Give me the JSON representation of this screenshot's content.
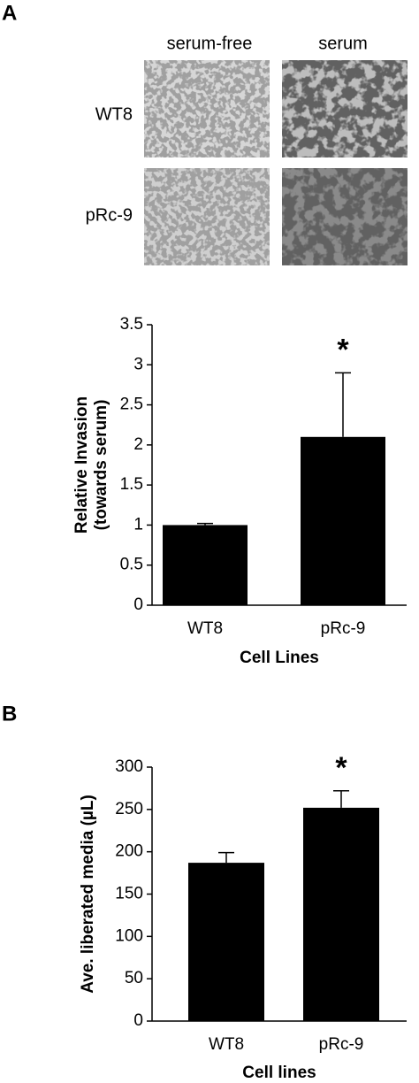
{
  "figure": {
    "panel_a": "A",
    "panel_b": "B",
    "columns": [
      "serum-free",
      "serum"
    ],
    "rows": [
      "WT8",
      "pRc-9"
    ]
  },
  "chart_data": [
    {
      "type": "bar",
      "categories": [
        "WT8",
        "pRc-9"
      ],
      "values": [
        1.0,
        2.1
      ],
      "errors": [
        0.02,
        0.8
      ],
      "color": "#000000",
      "ylabel": [
        "Relative Invasion",
        "(towards serum)"
      ],
      "xlabel": "Cell Lines",
      "ylim": [
        0,
        3.5
      ],
      "yticks": [
        0,
        0.5,
        1,
        1.5,
        2,
        2.5,
        3,
        3.5
      ],
      "grid": false,
      "annotations": [
        {
          "text": "*",
          "category": "pRc-9"
        }
      ]
    },
    {
      "type": "bar",
      "categories": [
        "WT8",
        "pRc-9"
      ],
      "values": [
        187,
        252
      ],
      "errors": [
        12,
        20
      ],
      "color": "#000000",
      "ylabel": [
        "Ave. liberated media (µL)"
      ],
      "xlabel": "Cell lines",
      "ylim": [
        0,
        300
      ],
      "yticks": [
        0,
        50,
        100,
        150,
        200,
        250,
        300
      ],
      "grid": false,
      "annotations": [
        {
          "text": "*",
          "category": "pRc-9"
        }
      ]
    }
  ]
}
